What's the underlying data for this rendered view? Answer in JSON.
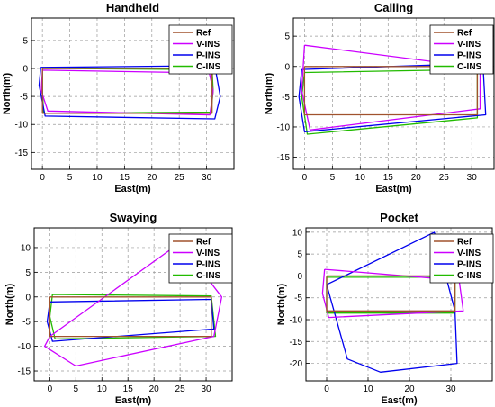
{
  "chart_data": [
    {
      "type": "line",
      "title": "Handheld",
      "xlabel": "East(m)",
      "ylabel": "North(m)",
      "xlim": [
        -2,
        35
      ],
      "ylim": [
        -18,
        9
      ],
      "xticks": [
        0,
        5,
        10,
        15,
        20,
        25,
        30
      ],
      "yticks": [
        -15,
        -10,
        -5,
        0,
        5
      ],
      "grid": true,
      "legend_position": "top-right",
      "series": [
        {
          "name": "Ref",
          "color": "#a0522d",
          "x": [
            0,
            31,
            31,
            0,
            0
          ],
          "y": [
            0,
            0,
            -8,
            -8,
            0
          ]
        },
        {
          "name": "V-INS",
          "color": "#cc00ff",
          "x": [
            0,
            30.5,
            31.2,
            30.6,
            1,
            -0.2,
            0
          ],
          "y": [
            -0.3,
            -0.8,
            -4,
            -8.3,
            -7.6,
            -4,
            -0.3
          ]
        },
        {
          "name": "P-INS",
          "color": "#0000ee",
          "x": [
            -0.3,
            31.5,
            32.5,
            31.5,
            0.5,
            -0.6,
            -0.3
          ],
          "y": [
            0.2,
            0.5,
            -5,
            -9,
            -8.5,
            -3,
            0.2
          ]
        },
        {
          "name": "C-INS",
          "color": "#22bb00",
          "x": [
            0,
            31,
            31.2,
            30.8,
            0.2,
            0,
            0
          ],
          "y": [
            0,
            -0.2,
            -4,
            -7.8,
            -8,
            -4,
            0
          ]
        }
      ]
    },
    {
      "type": "line",
      "title": "Calling",
      "xlabel": "East(m)",
      "ylabel": "North(m)",
      "xlim": [
        -2,
        34
      ],
      "ylim": [
        -17,
        8
      ],
      "xticks": [
        0,
        5,
        10,
        15,
        20,
        25,
        30
      ],
      "yticks": [
        -15,
        -10,
        -5,
        0,
        5
      ],
      "grid": true,
      "legend_position": "top-right",
      "series": [
        {
          "name": "Ref",
          "color": "#a0522d",
          "x": [
            0,
            31,
            31,
            0,
            0
          ],
          "y": [
            0,
            0,
            -8,
            -8,
            0
          ]
        },
        {
          "name": "V-INS",
          "color": "#cc00ff",
          "x": [
            0,
            31.5,
            31.5,
            1,
            -0.5,
            0
          ],
          "y": [
            3.5,
            -0.2,
            -7,
            -10.5,
            -4,
            3.5
          ]
        },
        {
          "name": "P-INS",
          "color": "#0000ee",
          "x": [
            -0.5,
            32,
            32.5,
            0,
            -1,
            -0.5
          ],
          "y": [
            -0.5,
            0.5,
            -8,
            -10.8,
            -5,
            -0.5
          ]
        },
        {
          "name": "C-INS",
          "color": "#22bb00",
          "x": [
            0,
            31,
            31,
            0.5,
            -0.5,
            0
          ],
          "y": [
            -1,
            -0.5,
            -8.5,
            -11.2,
            -5,
            -1
          ]
        }
      ]
    },
    {
      "type": "line",
      "title": "Swaying",
      "xlabel": "East(m)",
      "ylabel": "North(m)",
      "xlim": [
        -3,
        35
      ],
      "ylim": [
        -17,
        14
      ],
      "xticks": [
        0,
        5,
        10,
        15,
        20,
        25,
        30
      ],
      "yticks": [
        -15,
        -10,
        -5,
        0,
        5,
        10
      ],
      "grid": true,
      "legend_position": "top-right",
      "series": [
        {
          "name": "Ref",
          "color": "#a0522d",
          "x": [
            0,
            31,
            31,
            0,
            0
          ],
          "y": [
            0,
            0,
            -8,
            -8,
            0
          ]
        },
        {
          "name": "V-INS",
          "color": "#cc00ff",
          "x": [
            0,
            25,
            33,
            31.5,
            5,
            -1,
            0
          ],
          "y": [
            -8,
            11,
            0,
            -8,
            -14,
            -10,
            -8
          ]
        },
        {
          "name": "P-INS",
          "color": "#0000ee",
          "x": [
            0,
            31,
            31.5,
            0.5,
            -0.5,
            0
          ],
          "y": [
            -1,
            -0.5,
            -6.5,
            -9,
            -5,
            -1
          ]
        },
        {
          "name": "C-INS",
          "color": "#22bb00",
          "x": [
            0.5,
            31,
            31.8,
            1,
            0,
            0.5
          ],
          "y": [
            0.5,
            0.2,
            -8,
            -8.5,
            -4,
            0.5
          ]
        }
      ]
    },
    {
      "type": "line",
      "title": "Pocket",
      "xlabel": "East(m)",
      "ylabel": "North(m)",
      "xlim": [
        -5,
        40
      ],
      "ylim": [
        -24,
        11
      ],
      "xticks": [
        0,
        10,
        20,
        30
      ],
      "yticks": [
        -20,
        -15,
        -10,
        -5,
        0,
        5,
        10
      ],
      "grid": true,
      "legend_position": "top-right",
      "series": [
        {
          "name": "Ref",
          "color": "#a0522d",
          "x": [
            0,
            31,
            31,
            0,
            0
          ],
          "y": [
            0,
            0,
            -8,
            -8,
            0
          ]
        },
        {
          "name": "V-INS",
          "color": "#cc00ff",
          "x": [
            -0.5,
            32,
            33,
            0.5,
            -1,
            -0.5
          ],
          "y": [
            1.5,
            -1,
            -8,
            -9.5,
            -4,
            1.5
          ]
        },
        {
          "name": "P-INS",
          "color": "#0000ee",
          "x": [
            0,
            26,
            31,
            31.5,
            13,
            5,
            0
          ],
          "y": [
            -2,
            10,
            -8,
            -20,
            -22,
            -19,
            -2
          ]
        },
        {
          "name": "C-INS",
          "color": "#22bb00",
          "x": [
            0,
            31,
            31,
            0,
            0
          ],
          "y": [
            -0.3,
            -0.3,
            -8.5,
            -8.5,
            -0.3
          ]
        }
      ]
    }
  ]
}
